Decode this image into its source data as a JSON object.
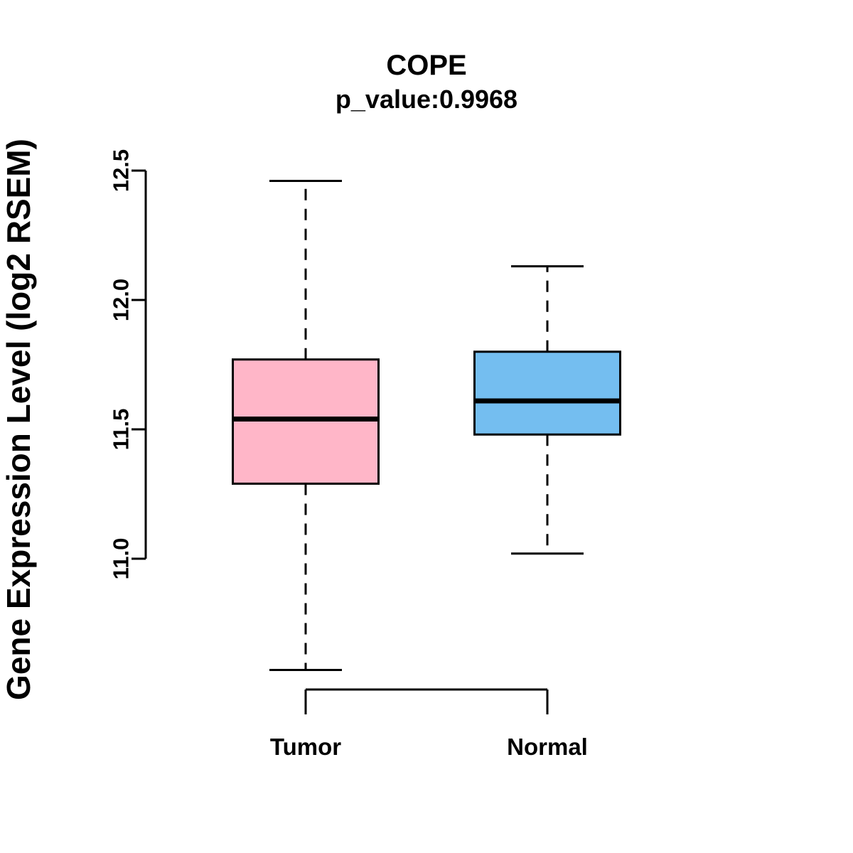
{
  "chart_data": {
    "type": "boxplot",
    "title": "COPE",
    "subtitle": "p_value:0.9968",
    "ylabel": "Gene Expression Level (log2 RSEM)",
    "categories": [
      "Tumor",
      "Normal"
    ],
    "ylim": [
      11.0,
      12.5
    ],
    "yticks": [
      11.0,
      11.5,
      12.0,
      12.5
    ],
    "ytick_labels": [
      "11.0",
      "11.5",
      "12.0",
      "12.5"
    ],
    "grid": false,
    "legend": "none",
    "series": [
      {
        "name": "Tumor",
        "lower_whisker": 10.57,
        "q1": 11.29,
        "median": 11.54,
        "q3": 11.77,
        "upper_whisker": 12.46,
        "color": "#FFB6C8"
      },
      {
        "name": "Normal",
        "lower_whisker": 11.02,
        "q1": 11.48,
        "median": 11.61,
        "q3": 11.8,
        "upper_whisker": 12.13,
        "color": "#74BEF0"
      }
    ],
    "colors": {
      "tumor_box": "#FFB6C8",
      "normal_box": "#74BEF0",
      "stroke": "#000000",
      "background": "#FFFFFF"
    }
  }
}
